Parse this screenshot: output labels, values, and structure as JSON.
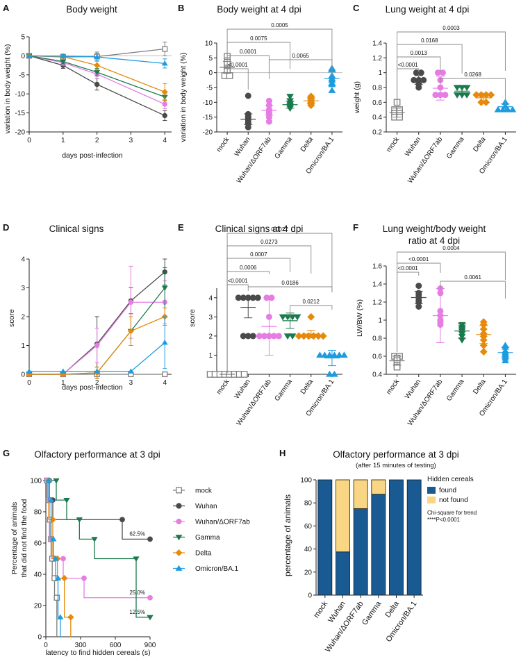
{
  "groups": [
    "mock",
    "Wuhan",
    "Wuhan/ΔORF7ab",
    "Gamma",
    "Delta",
    "Omicron/BA.1"
  ],
  "colors": {
    "mock": "#7d7d7d",
    "Wuhan": "#4a4a4a",
    "Wuhan/ΔORF7ab": "#e57de3",
    "Gamma": "#1a7a4d",
    "Delta": "#e58a0c",
    "Omicron/BA.1": "#1d9ce0",
    "found": "#1a5a93",
    "not_found": "#f8d684"
  },
  "markers": {
    "mock": "square-open",
    "Wuhan": "circle",
    "Wuhan/ΔORF7ab": "circle",
    "Gamma": "triangle-down",
    "Delta": "diamond",
    "Omicron/BA.1": "triangle-up"
  },
  "panels": {
    "A": {
      "letter": "A",
      "title": "Body weight",
      "xlabel": "days post-infection",
      "ylabel": "variation in body weight (%)"
    },
    "B": {
      "letter": "B",
      "title": "Body weight at 4 dpi",
      "ylabel": "variation in body weight (%)"
    },
    "C": {
      "letter": "C",
      "title": "Lung weight at 4 dpi",
      "ylabel": "weight (g)"
    },
    "D": {
      "letter": "D",
      "title": "Clinical signs",
      "xlabel": "days post-infection",
      "ylabel": "score"
    },
    "E": {
      "letter": "E",
      "title": "Clinical signs at 4 dpi",
      "ylabel": "score"
    },
    "F": {
      "letter": "F",
      "title_line1": "Lung weight/body weight",
      "title_line2": "ratio at 4 dpi",
      "ylabel": "LW/BW (%)"
    },
    "G": {
      "letter": "G",
      "title": "Olfactory performance at 3 dpi",
      "xlabel": "latency to find hidden cereals (s)",
      "ylabel_line1": "Percentage of animals",
      "ylabel_line2": "that did not find the food"
    },
    "H": {
      "letter": "H",
      "title": "Olfactory performance at 3 dpi",
      "subtitle": "(after 15 minutes of testing)",
      "ylabel": "percentage of animals",
      "legend_title": "Hidden cereals",
      "legend_found": "found",
      "legend_not_found": "not found",
      "stat_line1": "Chi-square for trend",
      "stat_line2": "****P<0.0001"
    }
  },
  "chart_data": [
    {
      "panel": "A",
      "type": "line",
      "x": [
        0,
        1,
        2,
        4
      ],
      "xticks": [
        0,
        1,
        2,
        3,
        4
      ],
      "xlim": [
        0,
        4.2
      ],
      "ylim": [
        -20,
        5
      ],
      "yticks": [
        5,
        0,
        -5,
        -10,
        -15,
        -20
      ],
      "reference_line": 0,
      "series": [
        {
          "name": "mock",
          "values": [
            0,
            -0.3,
            -0.2,
            1.8
          ],
          "err": [
            0,
            0.5,
            1.2,
            1.8
          ]
        },
        {
          "name": "Wuhan",
          "values": [
            0,
            -2.5,
            -7.5,
            -15.7
          ],
          "err": [
            0,
            0.8,
            1.5,
            1.3
          ]
        },
        {
          "name": "Wuhan/ΔORF7ab",
          "values": [
            0,
            -1.8,
            -4.8,
            -12.7
          ],
          "err": [
            0,
            0.7,
            1.2,
            1.2
          ]
        },
        {
          "name": "Gamma",
          "values": [
            0,
            -1.5,
            -4.3,
            -10.8
          ],
          "err": [
            0,
            0.6,
            1.0,
            1.0
          ]
        },
        {
          "name": "Delta",
          "values": [
            0,
            -0.2,
            -2.5,
            -9.5
          ],
          "err": [
            0,
            0.7,
            1.2,
            2.2
          ]
        },
        {
          "name": "Omicron/BA.1",
          "values": [
            0,
            -0.1,
            -0.3,
            -2.0
          ],
          "err": [
            0,
            0.4,
            1.0,
            1.2
          ]
        }
      ]
    },
    {
      "panel": "B",
      "type": "scatter",
      "ylim": [
        -20,
        10
      ],
      "yticks": [
        10,
        5,
        0,
        -5,
        -10,
        -15,
        -20
      ],
      "reference_line": 0,
      "summary": [
        {
          "name": "mock",
          "mean": 1.8,
          "sd": 2.0
        },
        {
          "name": "Wuhan",
          "mean": -15.7,
          "sd": 1.8
        },
        {
          "name": "Wuhan/ΔORF7ab",
          "mean": -12.7,
          "sd": 1.6
        },
        {
          "name": "Gamma",
          "mean": -10.8,
          "sd": 1.2
        },
        {
          "name": "Delta",
          "mean": -9.5,
          "sd": 1.0
        },
        {
          "name": "Omicron/BA.1",
          "mean": -2.0,
          "sd": 2.2
        }
      ],
      "points": [
        [
          5.5,
          4.0,
          3.0,
          1.0,
          0.5,
          -1.0,
          -1.0,
          3.5
        ],
        [
          -7.8,
          -14.0,
          -14.7,
          -15.2,
          -16.0,
          -17.1,
          -18.4,
          -16.7
        ],
        [
          -9.5,
          -11.0,
          -12.5,
          -13.0,
          -13.5,
          -14.0,
          -15.0,
          -16.5
        ],
        [
          -8.0,
          -9.5,
          -10.5,
          -11.0,
          -11.5,
          -12.0
        ],
        [
          -8.0,
          -8.5,
          -9.0,
          -9.5,
          -10.0,
          -10.5,
          -11.0
        ],
        [
          1.5,
          1.0,
          -1.0,
          -2.0,
          -2.5,
          -3.5,
          -4.0,
          -6.0
        ]
      ],
      "comparisons": [
        {
          "from": 0,
          "to": 1,
          "p": "<0.0001"
        },
        {
          "from": 0,
          "to": 2,
          "p": "0.0001"
        },
        {
          "from": 0,
          "to": 3,
          "p": "0.0075"
        },
        {
          "from": 0,
          "to": 5,
          "p": "0.0005"
        },
        {
          "from": 2,
          "to": 5,
          "p": "0.0065"
        }
      ]
    },
    {
      "panel": "C",
      "type": "scatter",
      "ylim": [
        0.2,
        1.4
      ],
      "yticks": [
        1.4,
        1.2,
        1.0,
        0.8,
        0.6,
        0.4,
        0.2
      ],
      "summary": [
        {
          "name": "mock",
          "mean": 0.46,
          "sd": 0.06
        },
        {
          "name": "Wuhan",
          "mean": 0.9,
          "sd": 0.06
        },
        {
          "name": "Wuhan/ΔORF7ab",
          "mean": 0.79,
          "sd": 0.16
        },
        {
          "name": "Gamma",
          "mean": 0.75,
          "sd": 0.05
        },
        {
          "name": "Delta",
          "mean": 0.66,
          "sd": 0.06
        },
        {
          "name": "Omicron/BA.1",
          "mean": 0.54,
          "sd": 0.04
        }
      ],
      "points": [
        [
          0.6,
          0.5,
          0.5,
          0.45,
          0.45,
          0.4,
          0.4
        ],
        [
          1.0,
          1.0,
          0.9,
          0.9,
          0.9,
          0.85,
          0.8
        ],
        [
          1.0,
          1.0,
          0.9,
          0.8,
          0.7,
          0.7,
          0.7
        ],
        [
          0.8,
          0.8,
          0.8,
          0.7,
          0.7,
          0.7
        ],
        [
          0.7,
          0.7,
          0.7,
          0.7,
          0.6,
          0.6
        ],
        [
          0.6,
          0.55,
          0.5,
          0.5,
          0.5,
          0.5
        ]
      ],
      "comparisons": [
        {
          "from": 0,
          "to": 1,
          "p": "<0.0001"
        },
        {
          "from": 0,
          "to": 2,
          "p": "0.0013"
        },
        {
          "from": 0,
          "to": 3,
          "p": "0.0168"
        },
        {
          "from": 0,
          "to": 5,
          "p": "0.0003"
        },
        {
          "from": 2,
          "to": 5,
          "p": "0.0268"
        }
      ]
    },
    {
      "panel": "D",
      "type": "line",
      "x": [
        0,
        1,
        2,
        3,
        4
      ],
      "xticks": [
        0,
        1,
        2,
        3,
        4
      ],
      "xlim": [
        0,
        4.2
      ],
      "ylim": [
        0,
        4
      ],
      "yticks": [
        0,
        1,
        2,
        3,
        4
      ],
      "series": [
        {
          "name": "mock",
          "values": [
            0,
            0,
            0,
            0,
            0
          ],
          "err": [
            0,
            0,
            0,
            0,
            0
          ]
        },
        {
          "name": "Wuhan",
          "values": [
            0,
            0,
            1.05,
            2.55,
            3.55
          ],
          "err": [
            0,
            0,
            0.95,
            0.45,
            0.45
          ]
        },
        {
          "name": "Wuhan/ΔORF7ab",
          "values": [
            0,
            0,
            1.0,
            2.5,
            2.5
          ],
          "err": [
            0,
            0,
            0.6,
            1.25,
            0.75
          ]
        },
        {
          "name": "Gamma",
          "values": [
            0,
            0,
            0.05,
            1.5,
            3.0
          ],
          "err": [
            0,
            0,
            0.2,
            0.5,
            0.7
          ]
        },
        {
          "name": "Delta",
          "values": [
            0,
            0,
            0.05,
            1.5,
            2.0
          ],
          "err": [
            0,
            0,
            0.2,
            0.5,
            0.3
          ]
        },
        {
          "name": "Omicron/BA.1",
          "values": [
            0.1,
            0.1,
            0.1,
            0.1,
            1.1
          ],
          "err": [
            0,
            0,
            0,
            0,
            0.9
          ]
        }
      ]
    },
    {
      "panel": "E",
      "type": "scatter",
      "ylim": [
        0,
        4.5
      ],
      "yticks": [
        4,
        3,
        2,
        1,
        0
      ],
      "summary": [
        {
          "name": "mock",
          "mean": 0,
          "sd": 0
        },
        {
          "name": "Wuhan",
          "mean": 3.5,
          "sd": 0.55
        },
        {
          "name": "Wuhan/ΔORF7ab",
          "mean": 2.5,
          "sd": 1.5
        },
        {
          "name": "Gamma",
          "mean": 2.8,
          "sd": 0.4
        },
        {
          "name": "Delta",
          "mean": 2.1,
          "sd": 0.2
        },
        {
          "name": "Omicron/BA.1",
          "mean": 0.85,
          "sd": 0.4
        }
      ],
      "points": [
        [
          0,
          0,
          0,
          0,
          0,
          0,
          0,
          0
        ],
        [
          4,
          4,
          4,
          4,
          4,
          2,
          2,
          2
        ],
        [
          4,
          4,
          3,
          2,
          2,
          2,
          2,
          2
        ],
        [
          3,
          3,
          3,
          3,
          2,
          2
        ],
        [
          3,
          2,
          2,
          2,
          2,
          2,
          2
        ],
        [
          1,
          1,
          1,
          1,
          1,
          1,
          0,
          0
        ]
      ],
      "comparisons": [
        {
          "from": 0,
          "to": 1,
          "p": "<0.0001"
        },
        {
          "from": 0,
          "to": 2,
          "p": "0.0006"
        },
        {
          "from": 0,
          "to": 3,
          "p": "0.0007"
        },
        {
          "from": 0,
          "to": 4,
          "p": "0.0273"
        },
        {
          "from": 0,
          "to": 5,
          "p": "0.0027"
        },
        {
          "from": 1,
          "to": 5,
          "p": "0.0186"
        },
        {
          "from": 3,
          "to": 5,
          "p": "0.0212"
        }
      ]
    },
    {
      "panel": "F",
      "type": "scatter",
      "ylim": [
        0.4,
        1.6
      ],
      "yticks": [
        1.6,
        1.4,
        1.2,
        1.0,
        0.8,
        0.6,
        0.4
      ],
      "summary": [
        {
          "name": "mock",
          "mean": 0.55,
          "sd": 0.05
        },
        {
          "name": "Wuhan",
          "mean": 1.25,
          "sd": 0.07
        },
        {
          "name": "Wuhan/ΔORF7ab",
          "mean": 1.05,
          "sd": 0.3
        },
        {
          "name": "Gamma",
          "mean": 0.88,
          "sd": 0.08
        },
        {
          "name": "Delta",
          "mean": 0.84,
          "sd": 0.1
        },
        {
          "name": "Omicron/BA.1",
          "mean": 0.64,
          "sd": 0.06
        }
      ],
      "points": [
        [
          0.6,
          0.6,
          0.58,
          0.55,
          0.52,
          0.5,
          0.48
        ],
        [
          1.38,
          1.3,
          1.28,
          1.25,
          1.22,
          1.2,
          1.15
        ],
        [
          1.35,
          1.3,
          1.1,
          1.05,
          1.0,
          0.98,
          0.95
        ],
        [
          0.95,
          0.92,
          0.9,
          0.88,
          0.85,
          0.82,
          0.78
        ],
        [
          0.98,
          0.95,
          0.9,
          0.85,
          0.82,
          0.78,
          0.72,
          0.65
        ],
        [
          0.72,
          0.7,
          0.66,
          0.64,
          0.62,
          0.6,
          0.58,
          0.55
        ]
      ],
      "comparisons": [
        {
          "from": 0,
          "to": 1,
          "p": "<0.0001"
        },
        {
          "from": 0,
          "to": 2,
          "p": "<0.0001"
        },
        {
          "from": 0,
          "to": 5,
          "p": "0.0004"
        },
        {
          "from": 2,
          "to": 5,
          "p": "0.0061"
        }
      ]
    },
    {
      "panel": "G",
      "type": "line",
      "step": true,
      "xlim": [
        0,
        900
      ],
      "xticks": [
        0,
        300,
        600,
        900
      ],
      "ylim": [
        0,
        100
      ],
      "yticks": [
        0,
        20,
        40,
        60,
        80,
        100
      ],
      "series": [
        {
          "name": "mock",
          "x": [
            0,
            10,
            25,
            35,
            45,
            55,
            75,
            95
          ],
          "values": [
            100,
            87.5,
            75,
            62.5,
            50,
            37.5,
            25,
            0
          ],
          "censored": []
        },
        {
          "name": "Wuhan",
          "x": [
            0,
            30,
            60,
            660
          ],
          "values": [
            100,
            87.5,
            75,
            62.5
          ],
          "censored": [
            [
              900,
              62.5
            ]
          ]
        },
        {
          "name": "Wuhan/ΔORF7ab",
          "x": [
            0,
            15,
            30,
            50,
            150,
            330
          ],
          "values": [
            100,
            87.5,
            62.5,
            50,
            37.5,
            25
          ],
          "censored": [
            [
              900,
              25
            ]
          ]
        },
        {
          "name": "Gamma",
          "x": [
            0,
            90,
            180,
            290,
            420,
            780
          ],
          "values": [
            100,
            87.5,
            75,
            62.5,
            50,
            12.5
          ],
          "censored": [
            [
              900,
              12.5
            ]
          ]
        },
        {
          "name": "Delta",
          "x": [
            0,
            25,
            60,
            100,
            160,
            215
          ],
          "values": [
            100,
            75,
            50,
            37.5,
            12.5,
            0
          ],
          "censored": []
        },
        {
          "name": "Omicron/BA.1",
          "x": [
            0,
            25,
            45,
            65,
            85,
            105,
            125
          ],
          "values": [
            100,
            87.5,
            62.5,
            50,
            37.5,
            12.5,
            0
          ],
          "censored": []
        }
      ],
      "annotations": [
        {
          "text": "62.5%",
          "x": 790,
          "y": 62.5
        },
        {
          "text": "25.0%",
          "x": 790,
          "y": 25
        },
        {
          "text": "12.5%",
          "x": 790,
          "y": 12.5
        }
      ]
    },
    {
      "panel": "H",
      "type": "bar",
      "stacked": true,
      "categories": [
        "mock",
        "Wuhan",
        "Wuhan/ΔORF7ab",
        "Gamma",
        "Delta",
        "Omicron/BA.1"
      ],
      "ylim": [
        0,
        100
      ],
      "yticks": [
        0,
        20,
        40,
        60,
        80,
        100
      ],
      "series": [
        {
          "name": "found",
          "values": [
            100,
            37.5,
            75,
            87.5,
            100,
            100
          ]
        },
        {
          "name": "not found",
          "values": [
            0,
            62.5,
            25,
            12.5,
            0,
            0
          ]
        }
      ]
    }
  ]
}
